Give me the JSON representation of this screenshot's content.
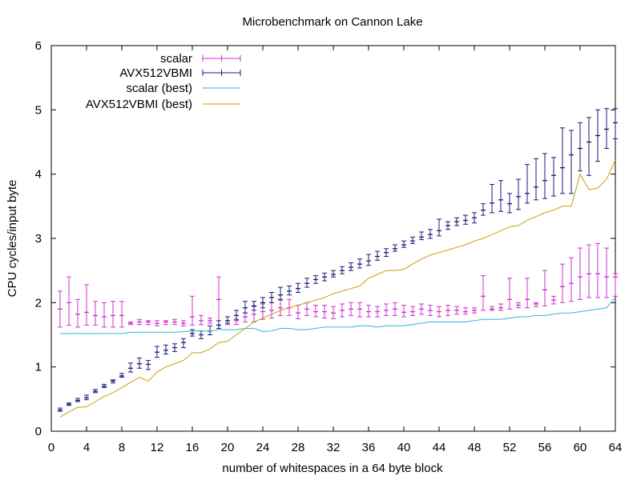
{
  "chart_data": {
    "type": "line",
    "title": "Microbenchmark on Cannon Lake",
    "xlabel": "number of whitespaces in a 64 byte block",
    "ylabel": "CPU cycles/input byte",
    "xlim": [
      0,
      64
    ],
    "ylim": [
      0,
      6
    ],
    "xticks": [
      0,
      4,
      8,
      12,
      16,
      20,
      24,
      28,
      32,
      36,
      40,
      44,
      48,
      52,
      56,
      60,
      64
    ],
    "yticks": [
      0,
      1,
      2,
      3,
      4,
      5,
      6
    ],
    "grid": false,
    "legend_position": "top-left",
    "x": [
      1,
      2,
      3,
      4,
      5,
      6,
      7,
      8,
      9,
      10,
      11,
      12,
      13,
      14,
      15,
      16,
      17,
      18,
      19,
      20,
      21,
      22,
      23,
      24,
      25,
      26,
      27,
      28,
      29,
      30,
      31,
      32,
      33,
      34,
      35,
      36,
      37,
      38,
      39,
      40,
      41,
      42,
      43,
      44,
      45,
      46,
      47,
      48,
      49,
      50,
      51,
      52,
      53,
      54,
      55,
      56,
      57,
      58,
      59,
      60,
      61,
      62,
      63,
      64
    ],
    "series": [
      {
        "name": "scalar",
        "style": "errorbars",
        "color": "#cc33cc",
        "values": [
          1.9,
          2.0,
          1.82,
          1.85,
          1.8,
          1.78,
          1.8,
          1.8,
          1.68,
          1.7,
          1.7,
          1.68,
          1.7,
          1.7,
          1.68,
          1.78,
          1.72,
          1.72,
          2.05,
          1.72,
          1.72,
          1.78,
          1.82,
          1.86,
          1.88,
          1.92,
          1.92,
          1.84,
          1.9,
          1.86,
          1.86,
          1.84,
          1.88,
          1.9,
          1.9,
          1.86,
          1.86,
          1.88,
          1.9,
          1.85,
          1.86,
          1.9,
          1.88,
          1.86,
          1.88,
          1.88,
          1.86,
          1.88,
          2.1,
          1.9,
          1.92,
          2.05,
          1.96,
          2.05,
          1.98,
          2.2,
          2.04,
          2.25,
          2.3,
          2.4,
          2.45,
          2.45,
          2.4,
          2.4
        ],
        "err_low": [
          1.62,
          1.65,
          1.62,
          1.65,
          1.65,
          1.62,
          1.62,
          1.62,
          1.66,
          1.66,
          1.66,
          1.64,
          1.66,
          1.66,
          1.64,
          1.65,
          1.66,
          1.68,
          1.65,
          1.66,
          1.66,
          1.7,
          1.7,
          1.74,
          1.76,
          1.8,
          1.8,
          1.75,
          1.8,
          1.78,
          1.76,
          1.75,
          1.78,
          1.8,
          1.78,
          1.78,
          1.78,
          1.8,
          1.8,
          1.78,
          1.8,
          1.82,
          1.8,
          1.78,
          1.8,
          1.82,
          1.82,
          1.84,
          1.88,
          1.88,
          1.88,
          1.9,
          1.92,
          1.92,
          1.94,
          1.95,
          1.98,
          2.0,
          2.02,
          2.05,
          2.08,
          2.08,
          2.08,
          2.1
        ],
        "err_high": [
          2.18,
          2.4,
          2.05,
          2.28,
          2.02,
          2.0,
          2.02,
          2.02,
          1.7,
          1.74,
          1.72,
          1.72,
          1.72,
          1.74,
          1.72,
          2.1,
          1.8,
          1.76,
          2.4,
          1.78,
          1.8,
          1.84,
          1.94,
          1.98,
          2.0,
          2.04,
          2.05,
          1.96,
          2.0,
          1.96,
          1.96,
          1.94,
          1.98,
          2.0,
          2.0,
          1.96,
          1.94,
          1.98,
          2.0,
          1.96,
          1.94,
          1.98,
          1.96,
          1.94,
          1.96,
          1.94,
          1.92,
          1.92,
          2.42,
          1.94,
          1.98,
          2.38,
          2.0,
          2.38,
          2.0,
          2.5,
          2.1,
          2.6,
          2.7,
          2.85,
          2.9,
          2.92,
          2.85,
          2.45
        ]
      },
      {
        "name": "AVX512VBMI",
        "style": "errorbars",
        "color": "#1a1a7a",
        "values": [
          0.33,
          0.42,
          0.48,
          0.52,
          0.62,
          0.7,
          0.78,
          0.86,
          0.98,
          1.05,
          1.04,
          1.23,
          1.26,
          1.3,
          1.38,
          1.52,
          1.5,
          1.56,
          1.65,
          1.72,
          1.8,
          1.92,
          1.95,
          2.0,
          2.08,
          2.12,
          2.18,
          2.22,
          2.3,
          2.36,
          2.4,
          2.44,
          2.5,
          2.55,
          2.6,
          2.65,
          2.72,
          2.78,
          2.84,
          2.9,
          2.96,
          3.02,
          3.06,
          3.12,
          3.2,
          3.26,
          3.28,
          3.32,
          3.44,
          3.55,
          3.6,
          3.54,
          3.65,
          3.7,
          3.8,
          3.9,
          3.98,
          4.1,
          4.3,
          4.4,
          4.5,
          4.6,
          4.7,
          4.8
        ],
        "err_low": [
          0.31,
          0.4,
          0.46,
          0.49,
          0.6,
          0.68,
          0.75,
          0.84,
          0.92,
          0.98,
          0.96,
          1.15,
          1.2,
          1.24,
          1.3,
          1.48,
          1.44,
          1.5,
          1.6,
          1.68,
          1.74,
          1.84,
          1.88,
          1.92,
          2.0,
          2.05,
          2.12,
          2.16,
          2.24,
          2.3,
          2.34,
          2.4,
          2.45,
          2.5,
          2.54,
          2.58,
          2.66,
          2.72,
          2.8,
          2.86,
          2.92,
          2.98,
          3.0,
          3.04,
          3.14,
          3.2,
          3.22,
          3.24,
          3.36,
          3.4,
          3.42,
          3.4,
          3.45,
          3.55,
          3.6,
          3.62,
          3.66,
          3.7,
          3.7,
          4.05,
          3.98,
          4.2,
          4.4,
          4.55
        ],
        "err_high": [
          0.36,
          0.44,
          0.51,
          0.56,
          0.65,
          0.73,
          0.8,
          0.9,
          1.06,
          1.14,
          1.1,
          1.32,
          1.34,
          1.36,
          1.44,
          1.58,
          1.56,
          1.64,
          1.72,
          1.78,
          1.88,
          2.02,
          2.02,
          2.08,
          2.16,
          2.24,
          2.26,
          2.3,
          2.38,
          2.42,
          2.46,
          2.5,
          2.56,
          2.62,
          2.68,
          2.75,
          2.8,
          2.84,
          2.9,
          2.96,
          3.02,
          3.1,
          3.14,
          3.3,
          3.26,
          3.32,
          3.36,
          3.4,
          3.54,
          3.84,
          3.9,
          3.7,
          3.92,
          4.15,
          4.24,
          4.32,
          4.26,
          4.72,
          4.68,
          4.8,
          4.88,
          5.0,
          5.02,
          5.02
        ]
      },
      {
        "name": "scalar (best)",
        "style": "line",
        "color": "#33b5d5",
        "values": [
          1.52,
          1.52,
          1.52,
          1.52,
          1.52,
          1.52,
          1.52,
          1.52,
          1.54,
          1.54,
          1.54,
          1.54,
          1.54,
          1.54,
          1.55,
          1.56,
          1.56,
          1.56,
          1.58,
          1.58,
          1.58,
          1.6,
          1.6,
          1.55,
          1.56,
          1.6,
          1.6,
          1.58,
          1.58,
          1.6,
          1.62,
          1.62,
          1.62,
          1.62,
          1.64,
          1.64,
          1.62,
          1.64,
          1.64,
          1.64,
          1.66,
          1.68,
          1.7,
          1.7,
          1.7,
          1.7,
          1.7,
          1.72,
          1.74,
          1.74,
          1.74,
          1.76,
          1.78,
          1.78,
          1.8,
          1.8,
          1.82,
          1.84,
          1.84,
          1.86,
          1.88,
          1.9,
          1.92,
          2.08
        ]
      },
      {
        "name": "AVX512VBMI (best)",
        "style": "line",
        "color": "#c8a000",
        "values": [
          0.22,
          0.3,
          0.37,
          0.38,
          0.46,
          0.54,
          0.6,
          0.68,
          0.76,
          0.84,
          0.78,
          0.92,
          1.0,
          1.05,
          1.1,
          1.22,
          1.22,
          1.28,
          1.38,
          1.4,
          1.5,
          1.6,
          1.7,
          1.76,
          1.82,
          1.88,
          1.92,
          1.96,
          2.0,
          2.04,
          2.08,
          2.14,
          2.18,
          2.22,
          2.26,
          2.38,
          2.44,
          2.5,
          2.5,
          2.52,
          2.6,
          2.68,
          2.74,
          2.78,
          2.82,
          2.86,
          2.9,
          2.96,
          3.0,
          3.06,
          3.12,
          3.18,
          3.2,
          3.28,
          3.34,
          3.4,
          3.44,
          3.5,
          3.5,
          4.0,
          3.76,
          3.78,
          3.92,
          4.22
        ]
      }
    ]
  }
}
